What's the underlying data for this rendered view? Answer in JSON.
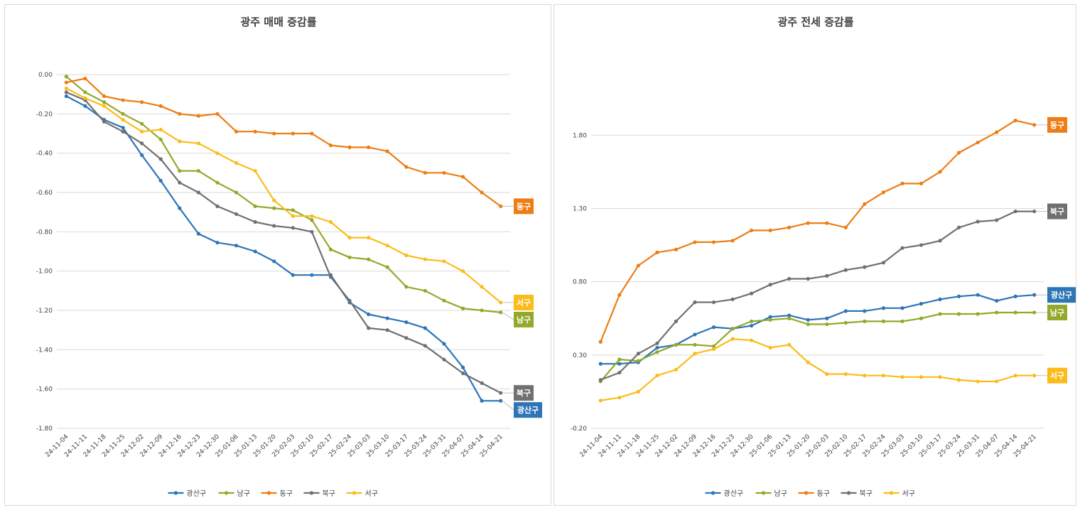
{
  "categories": [
    "24-11-04",
    "24-11-11",
    "24-11-18",
    "24-11-25",
    "24-12-02",
    "24-12-09",
    "24-12-16",
    "24-12-23",
    "24-12-30",
    "25-01-06",
    "25-01-13",
    "25-01-20",
    "25-02-03",
    "25-02-10",
    "25-02-17",
    "25-02-24",
    "25-03-03",
    "25-03-10",
    "25-03-17",
    "25-03-24",
    "25-03-31",
    "25-04-07",
    "25-04-14",
    "25-04-21"
  ],
  "colors": {
    "광산구": "#2e75b6",
    "남구": "#92a92a",
    "동구": "#ed7d15",
    "북구": "#707070",
    "서구": "#fbbc1a"
  },
  "chart_data": [
    {
      "type": "line",
      "title": "광주 매매 증감률",
      "ylim": [
        -1.8,
        0.0
      ],
      "yticks": [
        "0.00",
        "-0.20",
        "-0.40",
        "-0.60",
        "-0.80",
        "-1.00",
        "-1.20",
        "-1.40",
        "-1.60",
        "-1.80"
      ],
      "ytick_values": [
        0,
        -0.2,
        -0.4,
        -0.6,
        -0.8,
        -1.0,
        -1.2,
        -1.4,
        -1.6,
        -1.8
      ],
      "grid": true,
      "legend": "bottom",
      "series": [
        {
          "name": "광산구",
          "values": [
            -0.11,
            -0.16,
            -0.23,
            -0.27,
            -0.41,
            -0.54,
            -0.68,
            -0.81,
            -0.855,
            -0.87,
            -0.9,
            -0.95,
            -1.02,
            -1.02,
            -1.02,
            -1.16,
            -1.22,
            -1.24,
            -1.26,
            -1.29,
            -1.37,
            -1.49,
            -1.66,
            -1.66
          ]
        },
        {
          "name": "남구",
          "values": [
            -0.01,
            -0.09,
            -0.14,
            -0.2,
            -0.25,
            -0.33,
            -0.49,
            -0.49,
            -0.55,
            -0.6,
            -0.67,
            -0.68,
            -0.69,
            -0.74,
            -0.89,
            -0.93,
            -0.94,
            -0.98,
            -1.08,
            -1.1,
            -1.15,
            -1.19,
            -1.2,
            -1.21
          ]
        },
        {
          "name": "동구",
          "values": [
            -0.04,
            -0.02,
            -0.11,
            -0.13,
            -0.14,
            -0.16,
            -0.2,
            -0.21,
            -0.2,
            -0.29,
            -0.29,
            -0.3,
            -0.3,
            -0.3,
            -0.36,
            -0.37,
            -0.37,
            -0.39,
            -0.47,
            -0.5,
            -0.5,
            -0.52,
            -0.6,
            -0.67
          ]
        },
        {
          "name": "북구",
          "values": [
            -0.09,
            -0.13,
            -0.24,
            -0.29,
            -0.35,
            -0.43,
            -0.55,
            -0.6,
            -0.67,
            -0.71,
            -0.75,
            -0.77,
            -0.78,
            -0.8,
            -1.03,
            -1.15,
            -1.29,
            -1.3,
            -1.34,
            -1.38,
            -1.45,
            -1.52,
            -1.57,
            -1.62
          ]
        },
        {
          "name": "서구",
          "values": [
            -0.07,
            -0.12,
            -0.16,
            -0.23,
            -0.29,
            -0.28,
            -0.34,
            -0.35,
            -0.4,
            -0.45,
            -0.49,
            -0.64,
            -0.72,
            -0.72,
            -0.75,
            -0.83,
            -0.83,
            -0.87,
            -0.92,
            -0.94,
            -0.95,
            -1.0,
            -1.08,
            -1.16
          ]
        }
      ],
      "end_labels": [
        "동구",
        "서구",
        "남구",
        "북구",
        "광산구"
      ]
    },
    {
      "type": "line",
      "title": "광주 전세 증감률",
      "ylim": [
        -0.2,
        2.0
      ],
      "yticks": [
        "1.80",
        "1.30",
        "0.80",
        "0.30",
        "-0.20"
      ],
      "ytick_values": [
        1.8,
        1.3,
        0.8,
        0.3,
        -0.2
      ],
      "grid": true,
      "legend": "bottom",
      "series": [
        {
          "name": "광산구",
          "values": [
            0.24,
            0.24,
            0.25,
            0.35,
            0.37,
            0.44,
            0.49,
            0.48,
            0.5,
            0.56,
            0.57,
            0.54,
            0.55,
            0.6,
            0.6,
            0.62,
            0.62,
            0.65,
            0.68,
            0.7,
            0.71,
            0.67,
            0.7,
            0.71
          ]
        },
        {
          "name": "남구",
          "values": [
            0.12,
            0.27,
            0.26,
            0.32,
            0.37,
            0.37,
            0.36,
            0.48,
            0.53,
            0.54,
            0.55,
            0.51,
            0.51,
            0.52,
            0.53,
            0.53,
            0.53,
            0.55,
            0.58,
            0.58,
            0.58,
            0.59,
            0.59,
            0.59
          ]
        },
        {
          "name": "동구",
          "values": [
            0.39,
            0.71,
            0.91,
            1.0,
            1.02,
            1.07,
            1.07,
            1.08,
            1.15,
            1.15,
            1.17,
            1.2,
            1.2,
            1.17,
            1.33,
            1.41,
            1.47,
            1.47,
            1.55,
            1.68,
            1.75,
            1.82,
            1.9,
            1.87
          ]
        },
        {
          "name": "북구",
          "values": [
            0.13,
            0.18,
            0.31,
            0.38,
            0.53,
            0.66,
            0.66,
            0.68,
            0.72,
            0.78,
            0.82,
            0.82,
            0.84,
            0.88,
            0.9,
            0.93,
            1.03,
            1.05,
            1.08,
            1.17,
            1.21,
            1.22,
            1.28,
            1.28
          ]
        },
        {
          "name": "서구",
          "values": [
            -0.01,
            0.01,
            0.05,
            0.16,
            0.2,
            0.31,
            0.34,
            0.41,
            0.4,
            0.35,
            0.37,
            0.25,
            0.17,
            0.17,
            0.16,
            0.16,
            0.15,
            0.15,
            0.15,
            0.13,
            0.12,
            0.12,
            0.16,
            0.16
          ]
        }
      ],
      "end_labels": [
        "동구",
        "북구",
        "광산구",
        "남구",
        "서구"
      ]
    }
  ]
}
